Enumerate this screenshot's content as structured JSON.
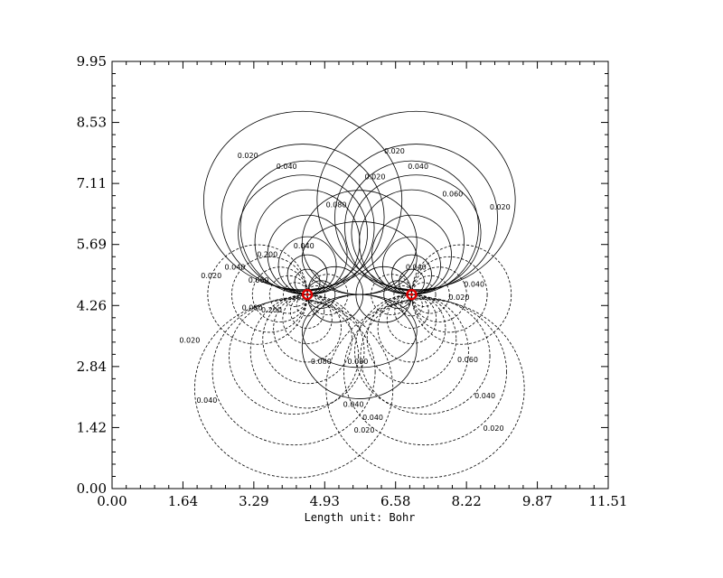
{
  "chart_data": {
    "type": "contour",
    "title": "",
    "xlabel": "Length unit: Bohr",
    "ylabel": "",
    "xlim": [
      0,
      11.51
    ],
    "ylim": [
      0,
      9.95
    ],
    "x_ticks": [
      "0.00",
      "1.64",
      "3.29",
      "4.93",
      "6.58",
      "8.22",
      "9.87",
      "11.51"
    ],
    "y_ticks": [
      "0.00",
      "1.42",
      "2.84",
      "4.26",
      "5.69",
      "7.11",
      "8.53",
      "9.95"
    ],
    "grid": false,
    "atoms": [
      {
        "x": 4.53,
        "y": 4.52
      },
      {
        "x": 6.95,
        "y": 4.52
      }
    ],
    "contour_levels_labeled": [
      "0.020",
      "0.040",
      "0.060",
      "0.080",
      "0.200"
    ],
    "contour_labels": [
      {
        "text": "0.020",
        "x": 3.15,
        "y": 7.7
      },
      {
        "text": "0.040",
        "x": 4.05,
        "y": 7.45
      },
      {
        "text": "0.080",
        "x": 5.2,
        "y": 6.55
      },
      {
        "text": "0.020",
        "x": 6.55,
        "y": 7.8
      },
      {
        "text": "0.020",
        "x": 6.1,
        "y": 7.2
      },
      {
        "text": "0.040",
        "x": 7.1,
        "y": 7.45
      },
      {
        "text": "0.060",
        "x": 7.9,
        "y": 6.8
      },
      {
        "text": "0.020",
        "x": 9.0,
        "y": 6.5
      },
      {
        "text": "0.020",
        "x": 2.3,
        "y": 4.9
      },
      {
        "text": "0.040",
        "x": 2.85,
        "y": 5.1
      },
      {
        "text": "0.060",
        "x": 3.4,
        "y": 4.8
      },
      {
        "text": "0.200",
        "x": 3.6,
        "y": 5.4
      },
      {
        "text": "0.040",
        "x": 4.45,
        "y": 5.6
      },
      {
        "text": "0.080",
        "x": 3.25,
        "y": 4.15
      },
      {
        "text": "0.200",
        "x": 3.7,
        "y": 4.1
      },
      {
        "text": "0.040",
        "x": 7.05,
        "y": 5.1
      },
      {
        "text": "0.020",
        "x": 8.05,
        "y": 4.4
      },
      {
        "text": "0.040",
        "x": 8.4,
        "y": 4.7
      },
      {
        "text": "0.020",
        "x": 1.8,
        "y": 3.4
      },
      {
        "text": "0.040",
        "x": 2.2,
        "y": 2.0
      },
      {
        "text": "0.080",
        "x": 4.85,
        "y": 2.9
      },
      {
        "text": "0.080",
        "x": 5.7,
        "y": 2.9
      },
      {
        "text": "0.040",
        "x": 5.6,
        "y": 1.9
      },
      {
        "text": "0.040",
        "x": 6.05,
        "y": 1.6
      },
      {
        "text": "0.020",
        "x": 5.85,
        "y": 1.3
      },
      {
        "text": "0.060",
        "x": 8.25,
        "y": 2.95
      },
      {
        "text": "0.040",
        "x": 8.65,
        "y": 2.1
      },
      {
        "text": "0.020",
        "x": 8.85,
        "y": 1.35
      }
    ]
  }
}
